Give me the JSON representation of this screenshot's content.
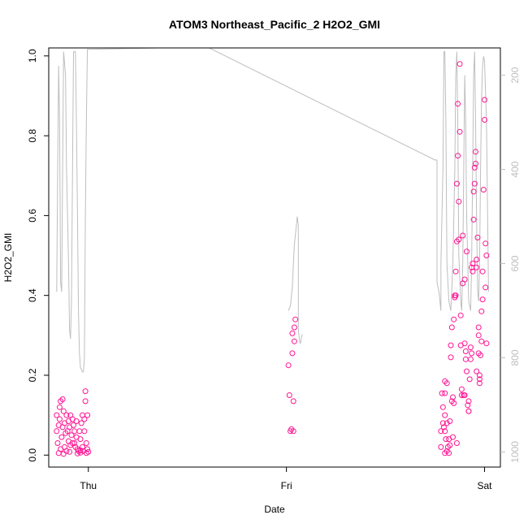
{
  "chart_data": {
    "type": "scatter",
    "title": "ATOM3 Northeast_Pacific_2 H2O2_GMI",
    "xlabel": "Date",
    "ylabel": "H2O2_GMI",
    "x_ticks": [
      {
        "label": "Thu",
        "value": 1.0
      },
      {
        "label": "Fri",
        "value": 2.0
      },
      {
        "label": "Sat",
        "value": 3.0
      }
    ],
    "xlim": [
      0.8,
      3.08
    ],
    "ylim": [
      -0.03,
      1.02
    ],
    "y_ticks": [
      0.0,
      0.2,
      0.4,
      0.6,
      0.8,
      1.0
    ],
    "y_tick_labels": [
      "0.0",
      "0.2",
      "0.4",
      "0.6",
      "0.8",
      "1.0"
    ],
    "right_axis": {
      "ticks": [
        200,
        400,
        600,
        800,
        1000
      ],
      "tick_labels": [
        "200",
        "400",
        "600",
        "800",
        "1000"
      ],
      "lim": [
        1032,
        142
      ],
      "color": "#bebebe",
      "reversed": true
    },
    "marker_color": "#ff1493",
    "line_color": "#bebebe",
    "series": [
      {
        "type": "points",
        "points": [
          [
            0.84,
            0.06
          ],
          [
            0.84,
            0.1
          ],
          [
            0.845,
            0.03
          ],
          [
            0.85,
            0.075
          ],
          [
            0.85,
            0.005
          ],
          [
            0.855,
            0.12
          ],
          [
            0.855,
            0.09
          ],
          [
            0.86,
            0.135
          ],
          [
            0.86,
            0.015
          ],
          [
            0.865,
            0.045
          ],
          [
            0.87,
            0.14
          ],
          [
            0.87,
            0.07
          ],
          [
            0.875,
            0.11
          ],
          [
            0.88,
            0.08
          ],
          [
            0.88,
            0.02
          ],
          [
            0.885,
            0.055
          ],
          [
            0.89,
            0.1
          ],
          [
            0.89,
            0.01
          ],
          [
            0.895,
            0.06
          ],
          [
            0.9,
            0.085
          ],
          [
            0.9,
            0.035
          ],
          [
            0.905,
            0.07
          ],
          [
            0.91,
            0.1
          ],
          [
            0.91,
            0.025
          ],
          [
            0.915,
            0.05
          ],
          [
            0.92,
            0.03
          ],
          [
            0.92,
            0.09
          ],
          [
            0.925,
            0.075
          ],
          [
            0.93,
            0.03
          ],
          [
            0.93,
            0.06
          ],
          [
            0.935,
            0.02
          ],
          [
            0.94,
            0.085
          ],
          [
            0.94,
            0.045
          ],
          [
            0.945,
            0.015
          ],
          [
            0.95,
            0.01
          ],
          [
            0.955,
            0.06
          ],
          [
            0.96,
            0.04
          ],
          [
            0.96,
            0.012
          ],
          [
            0.965,
            0.08
          ],
          [
            0.97,
            0.02
          ],
          [
            0.97,
            0.1
          ],
          [
            0.975,
            0.01
          ],
          [
            0.98,
            0.09
          ],
          [
            0.98,
            0.06
          ],
          [
            0.985,
            0.135
          ],
          [
            0.985,
            0.16
          ],
          [
            0.99,
            0.03
          ],
          [
            0.99,
            0.005
          ],
          [
            0.995,
            0.015
          ],
          [
            0.995,
            0.1
          ],
          [
            1.0,
            0.008
          ],
          [
            0.875,
            0.003
          ],
          [
            0.905,
            0.008
          ],
          [
            0.945,
            0.004
          ],
          [
            0.96,
            0.006
          ],
          [
            2.01,
            0.225
          ],
          [
            2.015,
            0.15
          ],
          [
            2.02,
            0.06
          ],
          [
            2.025,
            0.065
          ],
          [
            2.03,
            0.305
          ],
          [
            2.03,
            0.255
          ],
          [
            2.035,
            0.135
          ],
          [
            2.035,
            0.06
          ],
          [
            2.04,
            0.285
          ],
          [
            2.04,
            0.32
          ],
          [
            2.045,
            0.34
          ],
          [
            2.78,
            0.02
          ],
          [
            2.78,
            0.06
          ],
          [
            2.785,
            0.155
          ],
          [
            2.79,
            0.12
          ],
          [
            2.79,
            0.08
          ],
          [
            2.795,
            0.07
          ],
          [
            2.8,
            0.155
          ],
          [
            2.8,
            0.005
          ],
          [
            2.8,
            0.1
          ],
          [
            2.805,
            0.04
          ],
          [
            2.81,
            0.18
          ],
          [
            2.81,
            0.01
          ],
          [
            2.815,
            0.02
          ],
          [
            2.82,
            0.005
          ],
          [
            2.82,
            0.04
          ],
          [
            2.825,
            0.085
          ],
          [
            2.83,
            0.275
          ],
          [
            2.83,
            0.245
          ],
          [
            2.835,
            0.32
          ],
          [
            2.835,
            0.135
          ],
          [
            2.84,
            0.145
          ],
          [
            2.84,
            0.045
          ],
          [
            2.845,
            0.34
          ],
          [
            2.85,
            0.395
          ],
          [
            2.85,
            0.4
          ],
          [
            2.855,
            0.4
          ],
          [
            2.855,
            0.46
          ],
          [
            2.86,
            0.535
          ],
          [
            2.86,
            0.68
          ],
          [
            2.865,
            0.75
          ],
          [
            2.865,
            0.88
          ],
          [
            2.87,
            0.54
          ],
          [
            2.87,
            0.635
          ],
          [
            2.875,
            0.81
          ],
          [
            2.875,
            0.98
          ],
          [
            2.88,
            0.275
          ],
          [
            2.88,
            0.35
          ],
          [
            2.885,
            0.15
          ],
          [
            2.89,
            0.43
          ],
          [
            2.89,
            0.55
          ],
          [
            2.895,
            0.15
          ],
          [
            2.9,
            0.28
          ],
          [
            2.9,
            0.44
          ],
          [
            2.905,
            0.26
          ],
          [
            2.905,
            0.24
          ],
          [
            2.91,
            0.51
          ],
          [
            2.91,
            0.21
          ],
          [
            2.915,
            0.125
          ],
          [
            2.92,
            0.135
          ],
          [
            2.92,
            0.11
          ],
          [
            2.925,
            0.19
          ],
          [
            2.93,
            0.24
          ],
          [
            2.935,
            0.255
          ],
          [
            2.935,
            0.47
          ],
          [
            2.94,
            0.46
          ],
          [
            2.94,
            0.48
          ],
          [
            2.945,
            0.66
          ],
          [
            2.945,
            0.59
          ],
          [
            2.95,
            0.68
          ],
          [
            2.955,
            0.76
          ],
          [
            2.955,
            0.73
          ],
          [
            2.96,
            0.49
          ],
          [
            2.96,
            0.47
          ],
          [
            2.965,
            0.545
          ],
          [
            2.97,
            0.3
          ],
          [
            2.97,
            0.32
          ],
          [
            2.975,
            0.18
          ],
          [
            2.975,
            0.2
          ],
          [
            2.98,
            0.25
          ],
          [
            2.985,
            0.36
          ],
          [
            2.985,
            0.285
          ],
          [
            2.99,
            0.46
          ],
          [
            2.99,
            0.39
          ],
          [
            2.995,
            0.665
          ],
          [
            3.0,
            0.89
          ],
          [
            3.0,
            0.84
          ],
          [
            3.005,
            0.53
          ],
          [
            3.005,
            0.42
          ],
          [
            3.01,
            0.5
          ],
          [
            3.01,
            0.28
          ],
          [
            2.8,
            0.185
          ],
          [
            2.825,
            0.025
          ],
          [
            2.845,
            0.13
          ],
          [
            2.86,
            0.03
          ],
          [
            2.885,
            0.165
          ],
          [
            2.9,
            0.15
          ],
          [
            2.92,
            0.11
          ],
          [
            2.93,
            0.27
          ],
          [
            2.95,
            0.72
          ],
          [
            2.96,
            0.21
          ],
          [
            2.97,
            0.255
          ],
          [
            2.975,
            0.19
          ],
          [
            2.8,
            0.06
          ],
          [
            2.81,
            0.08
          ]
        ]
      },
      {
        "type": "line",
        "axis": "right",
        "points": [
          [
            0.84,
            660
          ],
          [
            0.845,
            400
          ],
          [
            0.85,
            180
          ],
          [
            0.855,
            300
          ],
          [
            0.86,
            640
          ],
          [
            0.865,
            660
          ],
          [
            0.87,
            400
          ],
          [
            0.875,
            150
          ],
          [
            0.885,
            200
          ],
          [
            0.89,
            400
          ],
          [
            0.9,
            600
          ],
          [
            0.905,
            740
          ],
          [
            0.91,
            760
          ],
          [
            0.915,
            680
          ],
          [
            0.92,
            400
          ],
          [
            0.925,
            150
          ],
          [
            0.935,
            150
          ],
          [
            0.94,
            300
          ],
          [
            0.945,
            500
          ],
          [
            0.95,
            700
          ],
          [
            0.955,
            790
          ],
          [
            0.96,
            820
          ],
          [
            0.97,
            830
          ],
          [
            0.975,
            830
          ],
          [
            0.98,
            800
          ],
          [
            0.985,
            500
          ],
          [
            0.99,
            300
          ],
          [
            0.995,
            145
          ],
          [
            1.0,
            145
          ],
          [
            1.6,
            140
          ],
          [
            2.75,
            380
          ],
          [
            2.76,
            380
          ],
          [
            2.76,
            640
          ],
          [
            2.77,
            660
          ],
          [
            2.78,
            700
          ],
          [
            2.78,
            600
          ],
          [
            2.79,
            400
          ],
          [
            2.795,
            150
          ],
          [
            2.8,
            150
          ],
          [
            2.805,
            300
          ],
          [
            2.81,
            600
          ],
          [
            2.82,
            680
          ],
          [
            2.83,
            700
          ],
          [
            2.84,
            600
          ],
          [
            2.85,
            400
          ],
          [
            2.855,
            200
          ],
          [
            2.86,
            150
          ],
          [
            2.865,
            300
          ],
          [
            2.87,
            580
          ],
          [
            2.88,
            680
          ],
          [
            2.885,
            700
          ],
          [
            2.89,
            600
          ],
          [
            2.895,
            400
          ],
          [
            2.9,
            200
          ],
          [
            2.905,
            300
          ],
          [
            2.91,
            500
          ],
          [
            2.92,
            680
          ],
          [
            2.93,
            700
          ],
          [
            2.935,
            600
          ],
          [
            2.94,
            400
          ],
          [
            2.945,
            200
          ],
          [
            2.95,
            150
          ],
          [
            2.955,
            300
          ],
          [
            2.96,
            500
          ],
          [
            2.965,
            660
          ],
          [
            2.97,
            680
          ],
          [
            2.975,
            600
          ],
          [
            2.98,
            400
          ],
          [
            2.985,
            250
          ],
          [
            2.99,
            180
          ],
          [
            2.995,
            160
          ],
          [
            3.0,
            170
          ],
          [
            3.01,
            300
          ],
          [
            3.02,
            660
          ]
        ]
      },
      {
        "type": "line",
        "axis": "right",
        "points": [
          [
            2.01,
            700
          ],
          [
            2.02,
            690
          ],
          [
            2.03,
            650
          ],
          [
            2.035,
            600
          ],
          [
            2.04,
            560
          ],
          [
            2.045,
            540
          ],
          [
            2.05,
            520
          ],
          [
            2.055,
            500
          ],
          [
            2.06,
            520
          ],
          [
            2.06,
            740
          ],
          [
            2.065,
            760
          ],
          [
            2.07,
            770
          ],
          [
            2.075,
            760
          ],
          [
            2.08,
            750
          ]
        ]
      }
    ]
  }
}
